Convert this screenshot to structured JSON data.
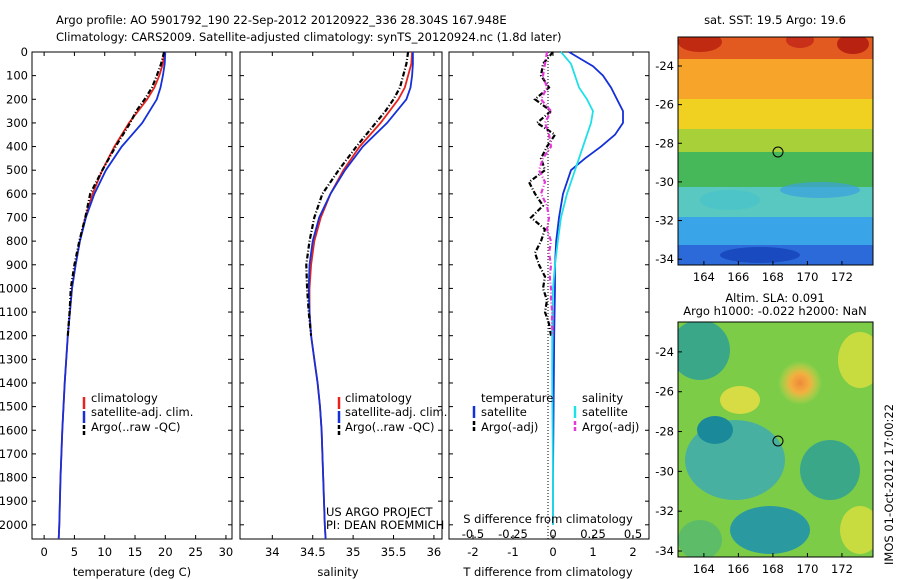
{
  "header": {
    "line1": "Argo profile: AO 5901792_190 22-Sep-2012 20120922_336 28.304S 167.948E",
    "line2": "Climatology: CARS2009. Satellite-adjusted climatology: synTS_20120924.nc (1.8d later)"
  },
  "colors": {
    "climatology": "#e8231f",
    "satellite": "#1530d8",
    "argo": "#000000",
    "sal_satellite": "#1ee0e8",
    "sal_argo": "#e23ad8"
  },
  "chart_data": [
    {
      "type": "line",
      "xlabel": "temperature (deg C)",
      "xlim": [
        -2,
        31
      ],
      "ylim": [
        2060,
        0
      ],
      "xticks": [
        0,
        5,
        10,
        15,
        20,
        25,
        30
      ],
      "yticks": [
        0,
        100,
        200,
        300,
        400,
        500,
        600,
        700,
        800,
        900,
        1000,
        1100,
        1200,
        1300,
        1400,
        1500,
        1600,
        1700,
        1800,
        1900,
        2000
      ],
      "legend": [
        "climatology",
        "satellite-adj. clim.",
        "Argo(..raw -QC)"
      ],
      "series": [
        {
          "name": "climatology",
          "depth": [
            0,
            50,
            100,
            150,
            200,
            300,
            400,
            500,
            600,
            700,
            800,
            900,
            1000,
            1200,
            1400,
            1600,
            1800,
            2000,
            2060
          ],
          "values": [
            19.8,
            19.6,
            19.0,
            18.2,
            17.0,
            14.0,
            11.6,
            9.6,
            8.0,
            6.8,
            5.9,
            5.2,
            4.6,
            3.9,
            3.4,
            3.0,
            2.7,
            2.5,
            2.4
          ]
        },
        {
          "name": "satellite-adj. clim.",
          "depth": [
            0,
            50,
            100,
            150,
            200,
            300,
            400,
            500,
            600,
            700,
            800,
            900,
            1000,
            1200,
            1400,
            1600,
            1800,
            2000,
            2060
          ],
          "values": [
            20.0,
            19.9,
            19.6,
            19.2,
            18.6,
            16.2,
            12.8,
            10.2,
            8.3,
            6.9,
            5.9,
            5.2,
            4.6,
            3.9,
            3.4,
            3.0,
            2.7,
            2.5,
            2.4
          ]
        },
        {
          "name": "Argo(..raw -QC)",
          "depth": [
            0,
            50,
            100,
            150,
            200,
            250,
            300,
            400,
            500,
            600,
            700,
            800,
            900,
            1000,
            1100,
            1200
          ],
          "values": [
            19.8,
            19.3,
            18.6,
            17.8,
            16.6,
            15.2,
            14.2,
            11.8,
            9.6,
            7.6,
            6.8,
            5.8,
            5.0,
            4.4,
            4.2,
            3.9
          ]
        }
      ]
    },
    {
      "type": "line",
      "xlabel": "salinity",
      "xlim": [
        33.6,
        36.1
      ],
      "ylim": [
        2060,
        0
      ],
      "xticks": [
        34,
        34.5,
        35,
        35.5,
        36
      ],
      "legend": [
        "climatology",
        "satellite-adj. clim.",
        "Argo(..raw -QC)"
      ],
      "annotations": [
        "US ARGO PROJECT",
        "PI: DEAN ROEMMICH"
      ],
      "series": [
        {
          "name": "climatology",
          "depth": [
            0,
            50,
            100,
            150,
            200,
            300,
            400,
            500,
            600,
            700,
            800,
            900,
            1000,
            1100,
            1200,
            1300,
            1400,
            1500,
            1600,
            1800,
            2000,
            2060
          ],
          "values": [
            35.73,
            35.72,
            35.68,
            35.64,
            35.56,
            35.34,
            35.08,
            34.88,
            34.72,
            34.6,
            34.52,
            34.48,
            34.46,
            34.46,
            34.48,
            34.52,
            34.56,
            34.59,
            34.61,
            34.63,
            34.65,
            34.66
          ]
        },
        {
          "name": "satellite-adj. clim.",
          "depth": [
            0,
            50,
            100,
            150,
            200,
            300,
            400,
            500,
            600,
            700,
            800,
            900,
            1000,
            1100,
            1200,
            1300,
            1400,
            1500,
            1600,
            1800,
            2000,
            2060
          ],
          "values": [
            35.74,
            35.74,
            35.73,
            35.71,
            35.66,
            35.42,
            35.12,
            34.9,
            34.72,
            34.58,
            34.5,
            34.46,
            34.45,
            34.46,
            34.48,
            34.52,
            34.56,
            34.59,
            34.61,
            34.63,
            34.65,
            34.66
          ]
        },
        {
          "name": "Argo(..raw -QC)",
          "depth": [
            0,
            50,
            100,
            150,
            200,
            250,
            300,
            400,
            500,
            600,
            700,
            800,
            900,
            1000,
            1100,
            1200
          ],
          "values": [
            35.68,
            35.66,
            35.62,
            35.58,
            35.5,
            35.4,
            35.28,
            35.04,
            34.82,
            34.62,
            34.52,
            34.46,
            34.42,
            34.43,
            34.45,
            34.48
          ]
        }
      ]
    },
    {
      "type": "line",
      "xlabel": "T difference from climatology",
      "xlabel2": "S difference from climatology",
      "xlim": [
        -2.6,
        2.4
      ],
      "ylim": [
        2060,
        0
      ],
      "xticks": [
        -2,
        -1,
        0,
        1,
        2
      ],
      "sticks": [
        [
          "-0.5",
          -2
        ],
        [
          "-0.25",
          -1
        ],
        [
          "0",
          0
        ],
        [
          "0.25",
          1
        ],
        [
          "0.5",
          2
        ]
      ],
      "legend_groups": [
        "temperature",
        "salinity"
      ],
      "legend": [
        "satellite",
        "Argo(-adj)",
        "satellite",
        "Argo(-adj)"
      ],
      "series": [
        {
          "name": "satellite",
          "depth": [
            0,
            30,
            60,
            100,
            150,
            200,
            250,
            300,
            350,
            400,
            450,
            500,
            600,
            700,
            800,
            900,
            1000,
            1200,
            1400,
            1600,
            1800,
            2000
          ],
          "values": [
            0.4,
            0.7,
            1.0,
            1.25,
            1.45,
            1.6,
            1.75,
            1.75,
            1.55,
            1.2,
            0.8,
            0.45,
            0.25,
            0.15,
            0.08,
            0.05,
            0.05,
            0.03,
            0.02,
            0.01,
            0.0,
            0.0
          ]
        },
        {
          "name": "Argo(-adj)",
          "depth": [
            0,
            50,
            100,
            150,
            200,
            250,
            300,
            350,
            400,
            450,
            500,
            550,
            600,
            650,
            700,
            750,
            800,
            850,
            900,
            950,
            1000,
            1050,
            1100,
            1150,
            1200
          ],
          "values": [
            0,
            -0.25,
            -0.3,
            -0.1,
            -0.45,
            -0.05,
            -0.4,
            0.05,
            -0.15,
            -0.3,
            -0.2,
            -0.6,
            -0.45,
            -0.25,
            -0.55,
            -0.2,
            -0.3,
            -0.45,
            -0.35,
            -0.2,
            -0.25,
            -0.15,
            -0.2,
            -0.1,
            -0.05
          ]
        },
        {
          "name": "satellite",
          "depth": [
            0,
            50,
            100,
            150,
            200,
            250,
            300,
            400,
            500,
            600,
            700,
            800,
            900,
            1000,
            1200,
            1400,
            1600,
            1800,
            2000
          ],
          "values": [
            0.2,
            0.45,
            0.55,
            0.65,
            0.85,
            1.0,
            0.95,
            0.75,
            0.55,
            0.35,
            0.2,
            0.12,
            0.05,
            0.0,
            -0.02,
            -0.02,
            -0.01,
            0,
            0
          ]
        },
        {
          "name": "Argo(-adj)",
          "depth": [
            0,
            50,
            100,
            150,
            200,
            250,
            300,
            350,
            400,
            450,
            500,
            550,
            600,
            650,
            700,
            750,
            800,
            850,
            900,
            950,
            1000,
            1050,
            1100,
            1150,
            1200
          ],
          "values": [
            -0.15,
            -0.2,
            -0.25,
            -0.15,
            -0.3,
            -0.05,
            -0.2,
            -0.1,
            -0.05,
            -0.25,
            -0.35,
            -0.2,
            -0.3,
            -0.15,
            -0.1,
            -0.15,
            -0.05,
            -0.1,
            -0.05,
            -0.08,
            -0.05,
            -0.05,
            -0.02,
            -0.03,
            0
          ]
        }
      ]
    },
    {
      "type": "heatmap",
      "title": "sat. SST: 19.5 Argo: 19.6",
      "xlim": [
        162.5,
        173.8
      ],
      "ylim": [
        -34.3,
        -22.5
      ],
      "xticks": [
        164,
        166,
        168,
        170,
        172
      ],
      "yticks": [
        -24,
        -26,
        -28,
        -30,
        -32,
        -34
      ],
      "marker": [
        167.948,
        -28.304
      ]
    },
    {
      "type": "heatmap",
      "title": "Altim. SLA: 0.091",
      "subtitle": "Argo h1000: -0.022 h2000: NaN",
      "xlim": [
        162.5,
        173.8
      ],
      "ylim": [
        -34.3,
        -22.5
      ],
      "xticks": [
        164,
        166,
        168,
        170,
        172
      ],
      "yticks": [
        -24,
        -26,
        -28,
        -30,
        -32,
        -34
      ],
      "marker": [
        167.948,
        -28.304
      ],
      "side_label": "IMOS 01-Oct-2012 17:00:22"
    }
  ]
}
